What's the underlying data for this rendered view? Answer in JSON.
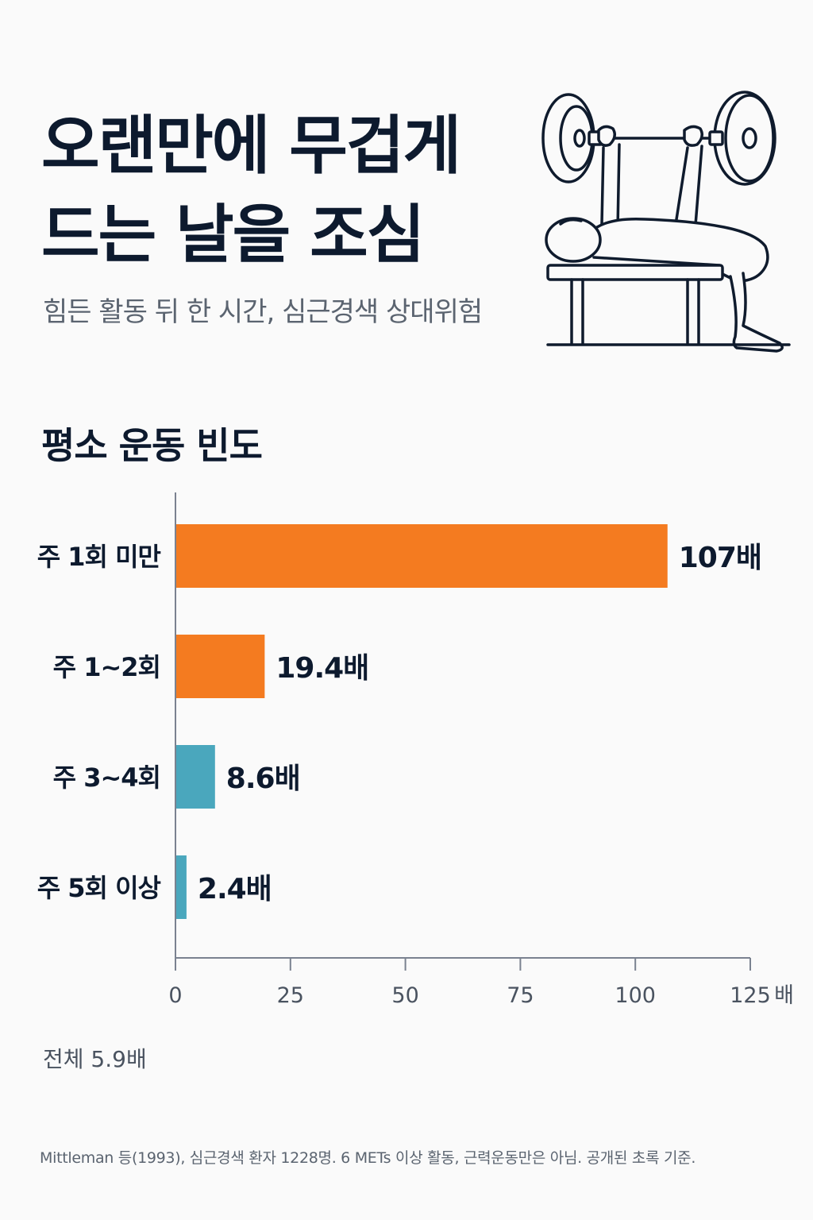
{
  "header": {
    "title_line1": "오랜만에 무겁게",
    "title_line2": "드는 날을 조심",
    "subtitle": "힘든 활동 뒤 한 시간, 심근경색 상대위험"
  },
  "illustration": {
    "icon": "bench-press-icon"
  },
  "section": {
    "title": "평소 운동 빈도"
  },
  "chart_data": {
    "type": "bar",
    "orientation": "horizontal",
    "categories": [
      "주 1회 미만",
      "주 1~2회",
      "주 3~4회",
      "주 5회 이상"
    ],
    "values": [
      107,
      19.4,
      8.6,
      2.4
    ],
    "value_labels": [
      "107배",
      "19.4배",
      "8.6배",
      "2.4배"
    ],
    "bar_colors": [
      "#f47b20",
      "#f47b20",
      "#4aa7bd",
      "#4aa7bd"
    ],
    "xlim": [
      0,
      125
    ],
    "xticks": [
      0,
      25,
      50,
      75,
      100,
      125
    ],
    "xtick_labels": [
      "0",
      "25",
      "50",
      "75",
      "100",
      "125"
    ],
    "x_unit": "배",
    "grid": false
  },
  "summary": {
    "total": "전체 5.9배"
  },
  "footnote": "Mittleman 등(1993), 심근경색 환자 1228명. 6 METs 이상 활동, 근력운동만은 아님. 공개된 초록 기준.",
  "colors": {
    "title": "#0d1a2e",
    "accent_orange": "#f47b20",
    "accent_teal": "#4aa7bd",
    "axis": "#6b7480"
  }
}
